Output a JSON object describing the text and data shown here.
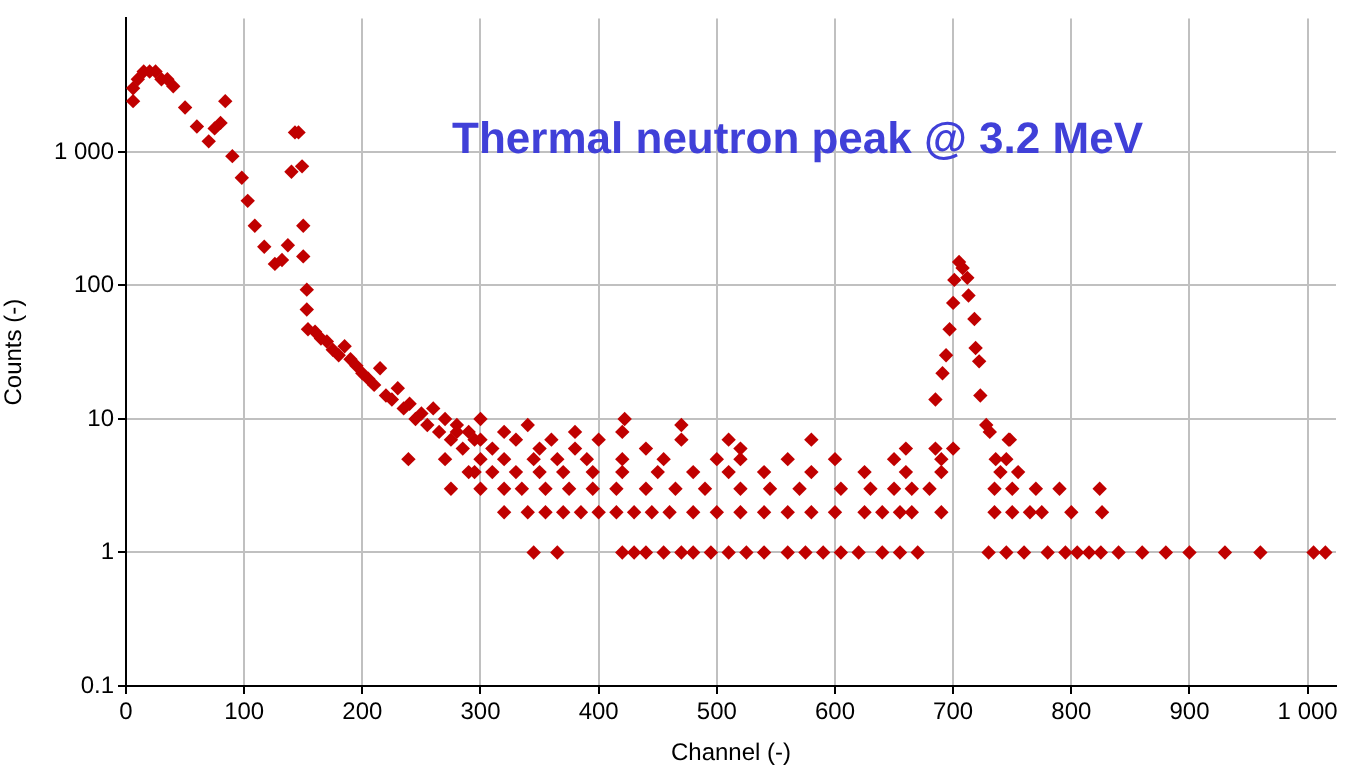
{
  "chart_data": {
    "type": "scatter",
    "title": "Thermal neutron peak @ 3.2 MeV",
    "xlabel": "Channel (-)",
    "ylabel": "Counts (-)",
    "log": "y",
    "grid": true,
    "legend": false,
    "marker": "diamond",
    "xlim": [
      0,
      1024
    ],
    "xticks": [
      0,
      100,
      200,
      300,
      400,
      500,
      600,
      700,
      800,
      900,
      {
        "value": 1000,
        "label": "1 000"
      }
    ],
    "ylim": [
      0.1,
      10000
    ],
    "yticks": [
      0.1,
      1,
      10,
      100,
      {
        "value": 1000,
        "label": "1 000"
      }
    ],
    "series": [
      {
        "color": "#c00000",
        "x": [
          6,
          6,
          10,
          15,
          20,
          25,
          30,
          35,
          40,
          50,
          60,
          70,
          75,
          80,
          84,
          90,
          98,
          103,
          109,
          117,
          126,
          132,
          137,
          140,
          143,
          146,
          149,
          150,
          150,
          153,
          153,
          154,
          160,
          165,
          170,
          175,
          180,
          185,
          190,
          195,
          200,
          205,
          210,
          215,
          220,
          225,
          230,
          235,
          239,
          240,
          245,
          250,
          255,
          260,
          265,
          270,
          275,
          275,
          280,
          285,
          290,
          295,
          295,
          300
        ],
        "values": [
          3000,
          2400,
          3500,
          4000,
          4000,
          4000,
          3500,
          3500,
          3100,
          2150,
          1550,
          1200,
          1500,
          1650,
          2400,
          930,
          640,
          430,
          280,
          195,
          145,
          155,
          200,
          710,
          1400,
          1400,
          780,
          280,
          165,
          93,
          66,
          47,
          45,
          40,
          38,
          33,
          30,
          35,
          28,
          25,
          22,
          20,
          18,
          24,
          15,
          14,
          17,
          12,
          5,
          13,
          10,
          11,
          9,
          12,
          8,
          10,
          7,
          3,
          9,
          6,
          8,
          7,
          4,
          10
        ]
      },
      {
        "color": "#c00000",
        "x": [
          685,
          691,
          694,
          697,
          700,
          701,
          705,
          708,
          712,
          713,
          718,
          719,
          722,
          723,
          728,
          731,
          736,
          747,
          422
        ],
        "values": [
          14,
          22,
          30,
          47,
          74,
          110,
          150,
          135,
          114,
          84,
          56,
          34,
          27,
          15,
          9,
          8,
          5,
          7,
          10
        ]
      },
      {
        "color": "#c00000",
        "x": [
          345,
          365,
          420,
          430,
          440,
          455,
          470,
          480,
          495,
          510,
          525,
          540,
          560,
          575,
          590,
          605,
          620,
          640,
          655,
          670,
          730,
          745,
          760,
          780,
          795,
          805,
          815,
          825,
          840,
          860,
          880,
          900,
          930,
          960,
          1005,
          1015
        ],
        "values": [
          1,
          1,
          1,
          1,
          1,
          1,
          1,
          1,
          1,
          1,
          1,
          1,
          1,
          1,
          1,
          1,
          1,
          1,
          1,
          1,
          1,
          1,
          1,
          1,
          1,
          1,
          1,
          1,
          1,
          1,
          1,
          1,
          1,
          1,
          1,
          1
        ]
      },
      {
        "color": "#c00000",
        "x": [
          320,
          340,
          355,
          370,
          385,
          400,
          415,
          430,
          445,
          460,
          480,
          500,
          520,
          540,
          560,
          580,
          600,
          625,
          640,
          655,
          665,
          690,
          735,
          750,
          765,
          775,
          800,
          826
        ],
        "values": [
          2,
          2,
          2,
          2,
          2,
          2,
          2,
          2,
          2,
          2,
          2,
          2,
          2,
          2,
          2,
          2,
          2,
          2,
          2,
          2,
          2,
          2,
          2,
          2,
          2,
          2,
          2,
          2
        ]
      },
      {
        "color": "#c00000",
        "x": [
          300,
          320,
          335,
          355,
          375,
          395,
          415,
          440,
          465,
          490,
          520,
          545,
          570,
          605,
          630,
          650,
          665,
          680,
          735,
          750,
          770,
          790,
          824
        ],
        "values": [
          3,
          3,
          3,
          3,
          3,
          3,
          3,
          3,
          3,
          3,
          3,
          3,
          3,
          3,
          3,
          3,
          3,
          3,
          3,
          3,
          3,
          3,
          3
        ]
      },
      {
        "color": "#c00000",
        "x": [
          290,
          310,
          330,
          350,
          370,
          395,
          420,
          450,
          480,
          510,
          540,
          580,
          625,
          660,
          690,
          740,
          755
        ],
        "values": [
          4,
          4,
          4,
          4,
          4,
          4,
          4,
          4,
          4,
          4,
          4,
          4,
          4,
          4,
          4,
          4,
          4
        ]
      },
      {
        "color": "#c00000",
        "x": [
          270,
          300,
          320,
          345,
          365,
          390,
          420,
          455,
          500,
          520,
          560,
          600,
          650,
          690,
          745
        ],
        "values": [
          5,
          5,
          5,
          5,
          5,
          5,
          5,
          5,
          5,
          5,
          5,
          5,
          5,
          5,
          5
        ]
      },
      {
        "color": "#c00000",
        "x": [
          310,
          350,
          380,
          440,
          520,
          660,
          685,
          700,
          300,
          330,
          360,
          400,
          470,
          510,
          580,
          748,
          280,
          320,
          380,
          420,
          340,
          470
        ],
        "values": [
          6,
          6,
          6,
          6,
          6,
          6,
          6,
          6,
          7,
          7,
          7,
          7,
          7,
          7,
          7,
          7,
          8,
          8,
          8,
          8,
          9,
          9
        ]
      }
    ]
  }
}
